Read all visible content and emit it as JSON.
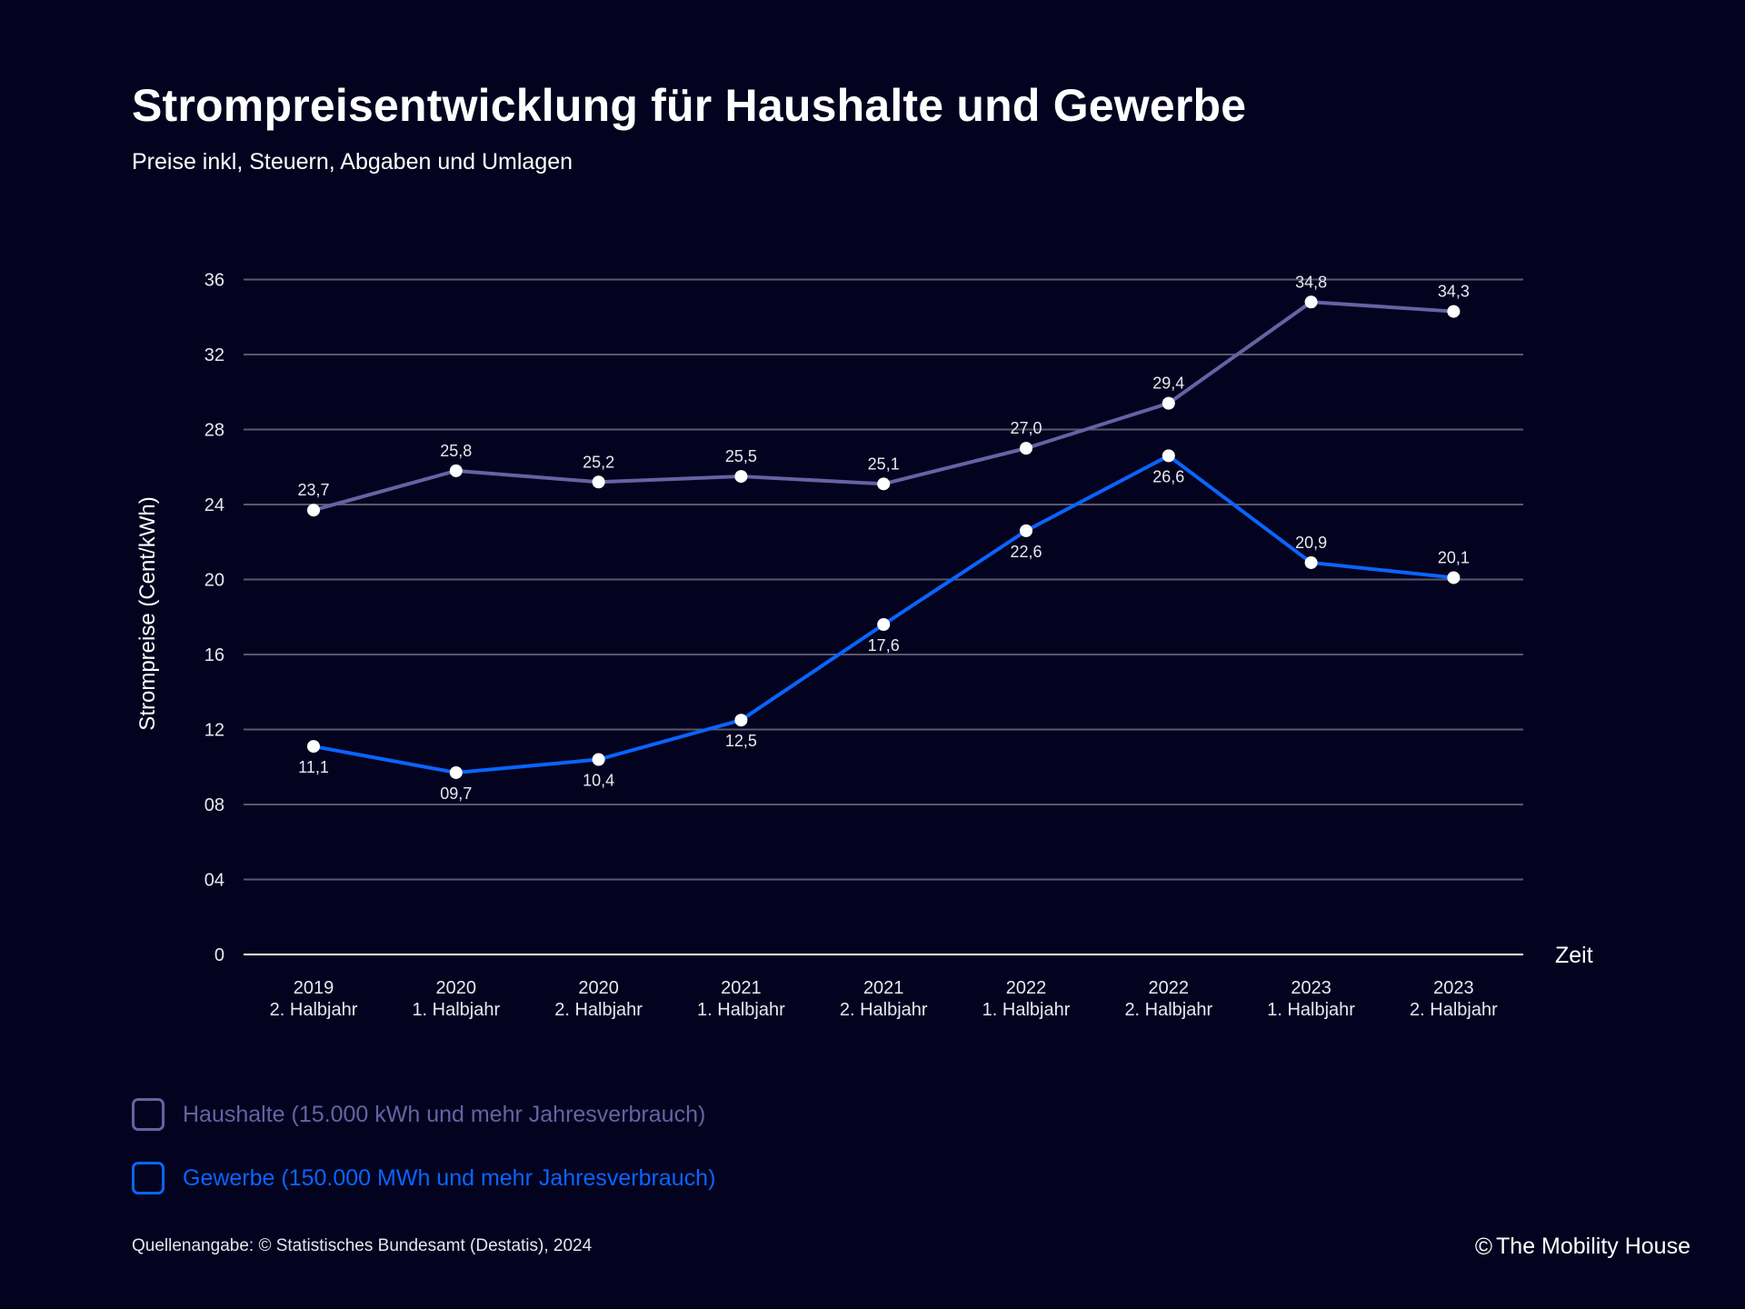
{
  "header": {
    "title": "Strompreisentwicklung für Haushalte und Gewerbe",
    "subtitle": "Preise inkl, Steuern, Abgaben und Umlagen"
  },
  "legend": [
    {
      "label": "Haushalte (15.000 kWh und mehr Jahresverbrauch)",
      "color": "#6563a3"
    },
    {
      "label": "Gewerbe (150.000 MWh und mehr Jahresverbrauch)",
      "color": "#0a64ff"
    }
  ],
  "footer": {
    "source": "Quellenangabe: © Statistisches Bundesamt (Destatis), 2024",
    "brand_icon": "©",
    "brand": "The Mobility House"
  },
  "colors": {
    "background": "#03031f",
    "grid": "#5a5870",
    "axis": "#ffffff",
    "point": "#ffffff"
  },
  "chart_data": {
    "type": "line",
    "title": "Strompreisentwicklung für Haushalte und Gewerbe",
    "subtitle": "Preise inkl, Steuern, Abgaben und Umlagen",
    "xlabel": "Zeit",
    "ylabel": "Strompreise (Cent/kWh)",
    "ylim": [
      0,
      36
    ],
    "yticks": [
      0,
      4,
      8,
      12,
      16,
      20,
      24,
      28,
      32,
      36
    ],
    "ytick_labels": [
      "0",
      "04",
      "08",
      "12",
      "16",
      "20",
      "24",
      "28",
      "32",
      "36"
    ],
    "grid": true,
    "legend_position": "bottom-left",
    "categories": [
      [
        "2019",
        "2. Halbjahr"
      ],
      [
        "2020",
        "1. Halbjahr"
      ],
      [
        "2020",
        "2. Halbjahr"
      ],
      [
        "2021",
        "1. Halbjahr"
      ],
      [
        "2021",
        "2. Halbjahr"
      ],
      [
        "2022",
        "1. Halbjahr"
      ],
      [
        "2022",
        "2. Halbjahr"
      ],
      [
        "2023",
        "1. Halbjahr"
      ],
      [
        "2023",
        "2. Halbjahr"
      ]
    ],
    "series": [
      {
        "name": "Haushalte (15.000 kWh und mehr Jahresverbrauch)",
        "color": "#6563a3",
        "values": [
          23.7,
          25.8,
          25.2,
          25.5,
          25.1,
          27.0,
          29.4,
          34.8,
          34.3
        ],
        "labels": [
          "23,7",
          "25,8",
          "25,2",
          "25,5",
          "25,1",
          "27,0",
          "29,4",
          "34,8",
          "34,3"
        ],
        "label_position": [
          "above",
          "above",
          "above",
          "above",
          "above",
          "above",
          "above",
          "above",
          "above"
        ]
      },
      {
        "name": "Gewerbe (150.000 MWh und mehr Jahresverbrauch)",
        "color": "#0a64ff",
        "values": [
          11.1,
          9.7,
          10.4,
          12.5,
          17.6,
          22.6,
          26.6,
          20.9,
          20.1
        ],
        "labels": [
          "11,1",
          "09,7",
          "10,4",
          "12,5",
          "17,6",
          "22,6",
          "26,6",
          "20,9",
          "20,1"
        ],
        "label_position": [
          "below",
          "below",
          "below",
          "below",
          "below",
          "below",
          "below",
          "above",
          "above"
        ]
      }
    ]
  }
}
